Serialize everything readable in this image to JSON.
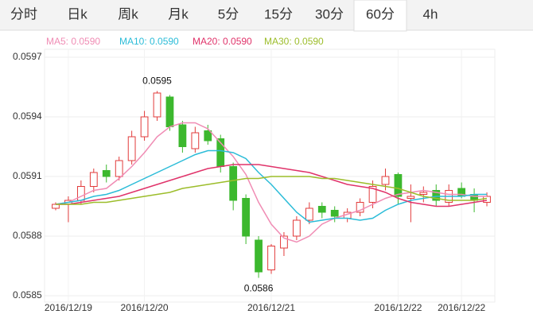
{
  "tabs": [
    "分时",
    "日k",
    "周k",
    "月k",
    "5分",
    "15分",
    "30分",
    "60分",
    "4h"
  ],
  "active_tab": "60分",
  "chart_data": {
    "type": "candlestick",
    "categories": [
      null,
      "2016/12/19",
      null,
      null,
      null,
      null,
      null,
      "2016/12/20",
      null,
      null,
      null,
      null,
      null,
      null,
      null,
      null,
      null,
      "2016/12/21",
      null,
      null,
      null,
      null,
      null,
      null,
      null,
      null,
      null,
      "2016/12/22",
      null,
      null,
      null,
      null,
      "2016/12/22",
      null,
      null
    ],
    "open": [
      0.05894,
      0.05896,
      0.05898,
      0.05905,
      0.05913,
      0.0591,
      0.05918,
      0.0593,
      0.0594,
      0.0595,
      0.05936,
      0.05924,
      0.05933,
      0.05929,
      0.05915,
      0.05899,
      0.05878,
      0.05863,
      0.05874,
      0.0588,
      0.05888,
      0.05895,
      0.05893,
      0.05889,
      0.05892,
      0.05897,
      0.05906,
      0.05911,
      0.05899,
      0.05901,
      0.05903,
      0.05897,
      0.05904,
      0.05901,
      0.05897
    ],
    "high": [
      0.05897,
      0.059,
      0.05908,
      0.05914,
      0.05916,
      0.0592,
      0.05933,
      0.05943,
      0.05953,
      0.05951,
      0.05938,
      0.05935,
      0.05936,
      0.05931,
      0.05917,
      0.05901,
      0.0588,
      0.05876,
      0.05882,
      0.0589,
      0.05897,
      0.05897,
      0.05895,
      0.05894,
      0.05899,
      0.05908,
      0.05914,
      0.05912,
      0.05906,
      0.05905,
      0.05906,
      0.05906,
      0.05907,
      0.05904,
      0.05902
    ],
    "low": [
      0.05893,
      0.05887,
      0.05896,
      0.05902,
      0.05907,
      0.05908,
      0.05916,
      0.05928,
      0.05938,
      0.05933,
      0.05922,
      0.05922,
      0.05926,
      0.05912,
      0.05893,
      0.05876,
      0.05859,
      0.05861,
      0.0587,
      0.05878,
      0.05886,
      0.05889,
      0.05887,
      0.05887,
      0.0589,
      0.05894,
      0.05903,
      0.05896,
      0.05887,
      0.05897,
      0.05895,
      0.05895,
      0.05899,
      0.05892,
      0.05895
    ],
    "close": [
      0.05896,
      0.05898,
      0.05905,
      0.05912,
      0.0591,
      0.05918,
      0.0593,
      0.0594,
      0.05952,
      0.05935,
      0.05925,
      0.05932,
      0.05928,
      0.05915,
      0.05898,
      0.0588,
      0.05862,
      0.05875,
      0.0588,
      0.05888,
      0.05894,
      0.05892,
      0.0589,
      0.05892,
      0.05897,
      0.05905,
      0.0591,
      0.059,
      0.059,
      0.05902,
      0.05898,
      0.05903,
      0.059,
      0.05898,
      0.059
    ],
    "up_color": "#e23b3b",
    "down_color": "#3cb82e",
    "max_label": "0.0595",
    "min_label": "0.0586",
    "series": [
      {
        "name": "MA5: 0.0590",
        "color": "#f08cb4",
        "values": [
          0.05896,
          0.05897,
          0.059,
          0.05903,
          0.05904,
          0.05909,
          0.05915,
          0.05922,
          0.0593,
          0.05935,
          0.05937,
          0.05937,
          0.05934,
          0.05927,
          0.0592,
          0.05911,
          0.05897,
          0.05886,
          0.05879,
          0.05877,
          0.0588,
          0.05886,
          0.05889,
          0.05891,
          0.05893,
          0.05896,
          0.05899,
          0.05901,
          0.05902,
          0.05903,
          0.05902,
          0.05901,
          0.05901,
          0.059,
          0.059
        ]
      },
      {
        "name": "MA10: 0.0590",
        "color": "#2bbcd8",
        "values": [
          0.05896,
          0.05897,
          0.05898,
          0.059,
          0.05901,
          0.05903,
          0.05906,
          0.05909,
          0.05912,
          0.05915,
          0.05918,
          0.05921,
          0.05923,
          0.05923,
          0.05922,
          0.05919,
          0.05912,
          0.05906,
          0.05899,
          0.05892,
          0.05887,
          0.05888,
          0.05889,
          0.05889,
          0.05888,
          0.05889,
          0.05893,
          0.05896,
          0.05898,
          0.05899,
          0.059,
          0.059,
          0.059,
          0.05901,
          0.05901
        ]
      },
      {
        "name": "MA20: 0.0590",
        "color": "#e0336a",
        "values": [
          0.05896,
          0.05896,
          0.05897,
          0.05898,
          0.05899,
          0.059,
          0.05902,
          0.05904,
          0.05906,
          0.05908,
          0.0591,
          0.05912,
          0.05914,
          0.05915,
          0.05916,
          0.05916,
          0.05916,
          0.05915,
          0.05914,
          0.05913,
          0.05912,
          0.0591,
          0.05908,
          0.05906,
          0.05905,
          0.05904,
          0.05902,
          0.05899,
          0.05897,
          0.05896,
          0.05895,
          0.05895,
          0.05896,
          0.05897,
          0.05898
        ]
      },
      {
        "name": "MA30: 0.0590",
        "color": "#9cbd2a",
        "values": [
          0.05896,
          0.05896,
          0.05896,
          0.05897,
          0.05897,
          0.05898,
          0.05899,
          0.059,
          0.05901,
          0.05902,
          0.05904,
          0.05905,
          0.05906,
          0.05907,
          0.05908,
          0.05909,
          0.05909,
          0.0591,
          0.0591,
          0.0591,
          0.0591,
          0.05909,
          0.05909,
          0.05908,
          0.05907,
          0.05906,
          0.05905,
          0.05904,
          0.05902,
          0.059,
          0.05899,
          0.05898,
          0.05898,
          0.05898,
          0.05899
        ]
      }
    ],
    "ylim": [
      0.0585,
      0.0597
    ],
    "yticks": [
      0.0585,
      0.0588,
      0.0591,
      0.0594,
      0.0597
    ],
    "grid": true
  }
}
